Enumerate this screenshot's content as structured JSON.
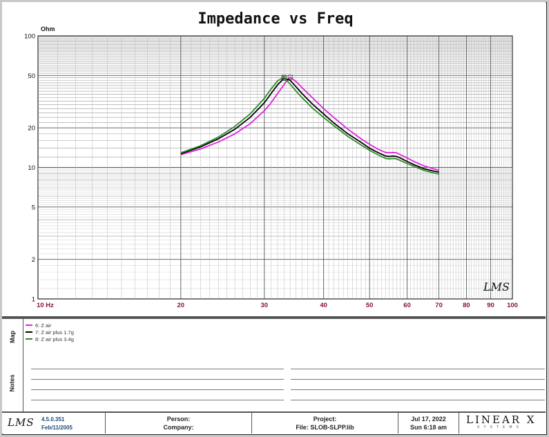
{
  "chart_data": {
    "type": "line",
    "title": "Impedance vs Freq",
    "y_unit": "Ohm",
    "x_scale": "log",
    "y_scale": "log",
    "xlim": [
      10,
      100
    ],
    "ylim": [
      1,
      100
    ],
    "x_ticks": [
      {
        "value": 10,
        "label": "10 Hz"
      },
      {
        "value": 20,
        "label": "20"
      },
      {
        "value": 30,
        "label": "30"
      },
      {
        "value": 40,
        "label": "40"
      },
      {
        "value": 50,
        "label": "50"
      },
      {
        "value": 60,
        "label": "60"
      },
      {
        "value": 70,
        "label": "70"
      },
      {
        "value": 80,
        "label": "80"
      },
      {
        "value": 90,
        "label": "90"
      },
      {
        "value": 100,
        "label": "100"
      }
    ],
    "y_ticks": [
      {
        "value": 1,
        "label": "1"
      },
      {
        "value": 2,
        "label": "2"
      },
      {
        "value": 5,
        "label": "5"
      },
      {
        "value": 10,
        "label": "10"
      },
      {
        "value": 20,
        "label": "20"
      },
      {
        "value": 50,
        "label": "50"
      },
      {
        "value": 100,
        "label": "100"
      }
    ],
    "grid": true,
    "series": [
      {
        "name": "6: Z air",
        "color": "#e020e0",
        "x": [
          20,
          22,
          24,
          26,
          28,
          30,
          31,
          32,
          33,
          33.5,
          34,
          35,
          36,
          38,
          40,
          42,
          45,
          48,
          50,
          52,
          54,
          55,
          56,
          57,
          58,
          60,
          62,
          65,
          68,
          70
        ],
        "y": [
          12.5,
          13.8,
          15.6,
          18.0,
          21.5,
          27.0,
          31.0,
          36.5,
          42.5,
          46.0,
          48.5,
          45.0,
          40.5,
          33.5,
          28.0,
          24.0,
          19.5,
          16.5,
          15.0,
          13.8,
          13.0,
          12.9,
          13.0,
          12.9,
          12.5,
          11.8,
          11.1,
          10.3,
          9.8,
          9.5
        ]
      },
      {
        "name": "7: Z air plus 1.7g",
        "color": "#000000",
        "x": [
          20,
          22,
          24,
          26,
          28,
          30,
          31,
          32,
          33,
          34,
          35,
          36,
          38,
          40,
          42,
          45,
          48,
          50,
          52,
          54,
          55,
          56,
          57,
          58,
          60,
          62,
          65,
          68,
          70
        ],
        "y": [
          12.7,
          14.3,
          16.5,
          19.5,
          24.0,
          31.0,
          36.5,
          42.5,
          47.5,
          46.0,
          41.0,
          36.5,
          30.0,
          25.5,
          21.8,
          18.0,
          15.5,
          14.0,
          13.0,
          12.2,
          12.1,
          12.2,
          12.1,
          11.8,
          11.1,
          10.5,
          9.8,
          9.4,
          9.2
        ]
      },
      {
        "name": "8: Z air plus 3.4g",
        "color": "#2a8a2a",
        "x": [
          20,
          22,
          24,
          26,
          28,
          30,
          31,
          32,
          33,
          34,
          35,
          36,
          38,
          40,
          42,
          45,
          48,
          50,
          52,
          54,
          55,
          56,
          57,
          58,
          60,
          62,
          65,
          68,
          70
        ],
        "y": [
          12.9,
          14.6,
          17.0,
          20.5,
          25.5,
          33.5,
          39.5,
          45.5,
          48.5,
          43.0,
          38.0,
          34.0,
          28.0,
          24.0,
          20.8,
          17.2,
          14.8,
          13.5,
          12.5,
          11.7,
          11.6,
          11.7,
          11.6,
          11.3,
          10.7,
          10.2,
          9.5,
          9.1,
          8.9
        ]
      }
    ]
  },
  "panels": {
    "map_label": "Map",
    "notes_label": "Notes"
  },
  "footer": {
    "logo_text": "LMS",
    "version": "4.5.0.351",
    "version_date": "Feb/11/2005",
    "person_label": "Person:",
    "company_label": "Company:",
    "project_label": "Project:",
    "file_label": "File: SLOB-SLPP.lib",
    "date": "Jul 17, 2022",
    "time": "Sun  6:18 am",
    "brand_main": "LINEAR X",
    "brand_sub": "SYSTEMS"
  },
  "watermark": "LMS"
}
